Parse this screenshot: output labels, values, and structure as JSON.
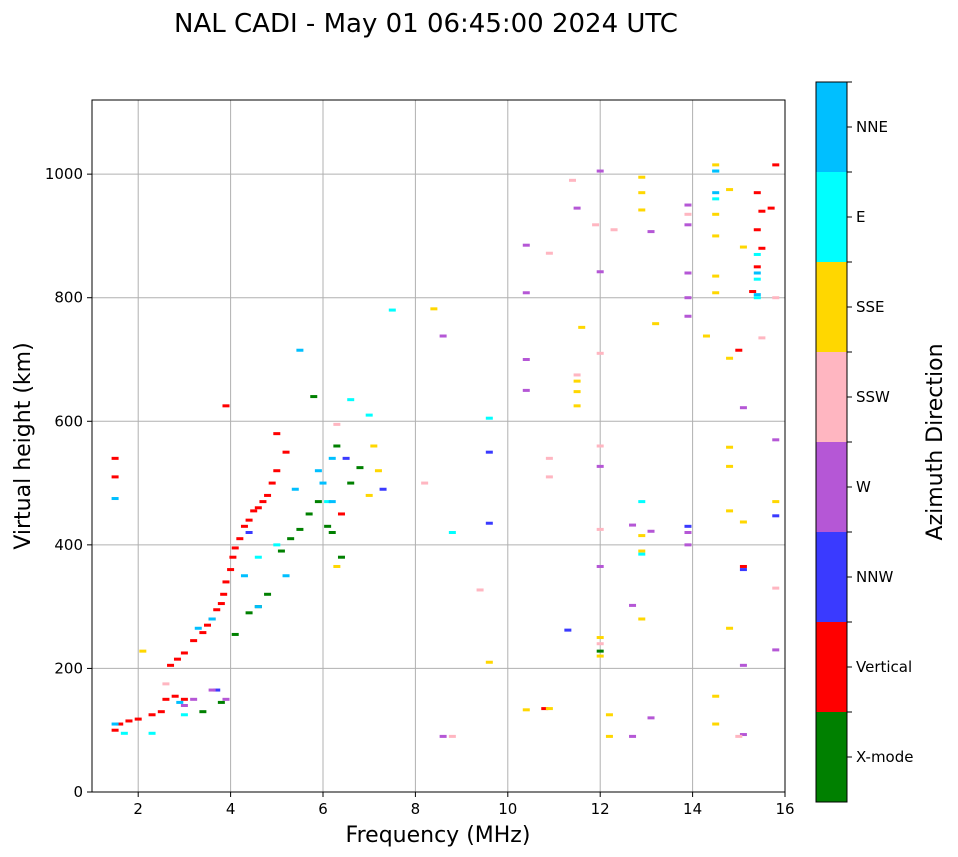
{
  "chart_data": {
    "type": "scatter",
    "title": "NAL CADI - May 01 06:45:00 2024 UTC",
    "xlabel": "Frequency (MHz)",
    "ylabel": "Virtual height (km)",
    "xlim": [
      1,
      16
    ],
    "ylim": [
      0,
      1120
    ],
    "xticks": [
      2,
      4,
      6,
      8,
      10,
      12,
      14,
      16
    ],
    "yticks": [
      0,
      200,
      400,
      600,
      800,
      1000
    ],
    "grid": true,
    "colorbar": {
      "label": "Azimuth Direction",
      "categories": [
        {
          "name": "X-mode",
          "color": "#008000"
        },
        {
          "name": "Vertical",
          "color": "#ff0000"
        },
        {
          "name": "NNW",
          "color": "#3a3aff"
        },
        {
          "name": "W",
          "color": "#b557d6"
        },
        {
          "name": "SSW",
          "color": "#ffb6c1"
        },
        {
          "name": "SSE",
          "color": "#ffd700"
        },
        {
          "name": "E",
          "color": "#00ffff"
        },
        {
          "name": "NNE",
          "color": "#00bfff"
        }
      ]
    },
    "series": [
      {
        "name": "Vertical",
        "points": [
          [
            1.5,
            100
          ],
          [
            1.6,
            110
          ],
          [
            1.8,
            115
          ],
          [
            2.0,
            118
          ],
          [
            2.3,
            125
          ],
          [
            2.5,
            130
          ],
          [
            2.6,
            150
          ],
          [
            2.8,
            155
          ],
          [
            3.0,
            150
          ],
          [
            2.7,
            205
          ],
          [
            2.85,
            215
          ],
          [
            3.0,
            225
          ],
          [
            3.2,
            245
          ],
          [
            3.4,
            258
          ],
          [
            3.5,
            270
          ],
          [
            3.6,
            280
          ],
          [
            3.7,
            295
          ],
          [
            3.8,
            305
          ],
          [
            3.85,
            320
          ],
          [
            3.9,
            340
          ],
          [
            4.0,
            360
          ],
          [
            4.05,
            380
          ],
          [
            4.1,
            395
          ],
          [
            4.2,
            410
          ],
          [
            4.3,
            430
          ],
          [
            4.4,
            440
          ],
          [
            4.5,
            455
          ],
          [
            4.6,
            460
          ],
          [
            4.7,
            470
          ],
          [
            4.8,
            480
          ],
          [
            4.9,
            500
          ],
          [
            5.0,
            520
          ],
          [
            5.2,
            550
          ],
          [
            5.0,
            580
          ],
          [
            1.5,
            540
          ],
          [
            1.5,
            510
          ],
          [
            3.9,
            625
          ],
          [
            6.4,
            450
          ],
          [
            10.8,
            135
          ],
          [
            15.1,
            365
          ],
          [
            15.0,
            715
          ],
          [
            15.3,
            810
          ],
          [
            15.4,
            850
          ],
          [
            15.5,
            880
          ],
          [
            15.4,
            910
          ],
          [
            15.5,
            940
          ],
          [
            15.4,
            970
          ],
          [
            15.7,
            945
          ],
          [
            15.8,
            1015
          ]
        ]
      },
      {
        "name": "X-mode",
        "points": [
          [
            3.4,
            130
          ],
          [
            3.8,
            145
          ],
          [
            4.1,
            255
          ],
          [
            4.4,
            290
          ],
          [
            4.6,
            300
          ],
          [
            4.8,
            320
          ],
          [
            5.1,
            390
          ],
          [
            5.3,
            410
          ],
          [
            5.5,
            425
          ],
          [
            5.7,
            450
          ],
          [
            5.9,
            470
          ],
          [
            6.1,
            430
          ],
          [
            6.2,
            420
          ],
          [
            6.4,
            380
          ],
          [
            6.3,
            560
          ],
          [
            6.6,
            500
          ],
          [
            6.8,
            525
          ],
          [
            5.8,
            640
          ],
          [
            12.0,
            228
          ]
        ]
      },
      {
        "name": "NNW",
        "points": [
          [
            3.7,
            165
          ],
          [
            4.4,
            420
          ],
          [
            6.5,
            540
          ],
          [
            7.3,
            490
          ],
          [
            9.6,
            435
          ],
          [
            9.6,
            550
          ],
          [
            11.3,
            262
          ],
          [
            13.9,
            430
          ],
          [
            15.1,
            360
          ],
          [
            15.8,
            447
          ]
        ]
      },
      {
        "name": "W",
        "points": [
          [
            3.0,
            140
          ],
          [
            3.2,
            150
          ],
          [
            3.6,
            165
          ],
          [
            3.9,
            150
          ],
          [
            8.6,
            90
          ],
          [
            10.4,
            700
          ],
          [
            10.4,
            650
          ],
          [
            10.4,
            885
          ],
          [
            10.4,
            808
          ],
          [
            11.5,
            945
          ],
          [
            12.0,
            1005
          ],
          [
            12.0,
            842
          ],
          [
            12.0,
            527
          ],
          [
            12.0,
            365
          ],
          [
            12.7,
            432
          ],
          [
            12.7,
            302
          ],
          [
            12.7,
            90
          ],
          [
            13.1,
            907
          ],
          [
            13.1,
            422
          ],
          [
            13.1,
            120
          ],
          [
            13.9,
            950
          ],
          [
            13.9,
            918
          ],
          [
            13.9,
            840
          ],
          [
            13.9,
            800
          ],
          [
            13.9,
            770
          ],
          [
            13.9,
            420
          ],
          [
            13.9,
            400
          ],
          [
            15.1,
            622
          ],
          [
            15.1,
            205
          ],
          [
            15.1,
            93
          ],
          [
            15.8,
            570
          ],
          [
            15.8,
            230
          ],
          [
            8.6,
            738
          ]
        ]
      },
      {
        "name": "SSW",
        "points": [
          [
            2.6,
            175
          ],
          [
            6.3,
            595
          ],
          [
            8.2,
            500
          ],
          [
            9.4,
            327
          ],
          [
            10.9,
            872
          ],
          [
            10.9,
            540
          ],
          [
            10.9,
            510
          ],
          [
            11.4,
            990
          ],
          [
            11.5,
            675
          ],
          [
            11.9,
            918
          ],
          [
            12.0,
            710
          ],
          [
            12.0,
            560
          ],
          [
            12.0,
            425
          ],
          [
            12.0,
            240
          ],
          [
            12.3,
            910
          ],
          [
            13.9,
            935
          ],
          [
            15.0,
            90
          ],
          [
            15.5,
            735
          ],
          [
            15.8,
            800
          ],
          [
            15.8,
            330
          ],
          [
            8.8,
            90
          ]
        ]
      },
      {
        "name": "SSE",
        "points": [
          [
            2.1,
            228
          ],
          [
            6.3,
            365
          ],
          [
            7.0,
            480
          ],
          [
            7.2,
            520
          ],
          [
            7.1,
            560
          ],
          [
            8.4,
            782
          ],
          [
            9.6,
            210
          ],
          [
            10.4,
            133
          ],
          [
            10.9,
            135
          ],
          [
            11.6,
            752
          ],
          [
            11.5,
            665
          ],
          [
            11.5,
            648
          ],
          [
            11.5,
            625
          ],
          [
            12.0,
            250
          ],
          [
            12.0,
            220
          ],
          [
            12.2,
            125
          ],
          [
            12.2,
            90
          ],
          [
            12.9,
            995
          ],
          [
            12.9,
            970
          ],
          [
            12.9,
            942
          ],
          [
            12.9,
            415
          ],
          [
            12.9,
            390
          ],
          [
            12.9,
            280
          ],
          [
            13.2,
            758
          ],
          [
            14.3,
            738
          ],
          [
            14.5,
            1015
          ],
          [
            14.5,
            935
          ],
          [
            14.5,
            900
          ],
          [
            14.5,
            835
          ],
          [
            14.5,
            808
          ],
          [
            14.5,
            155
          ],
          [
            14.5,
            110
          ],
          [
            14.8,
            975
          ],
          [
            14.8,
            702
          ],
          [
            14.8,
            558
          ],
          [
            14.8,
            527
          ],
          [
            14.8,
            455
          ],
          [
            14.8,
            265
          ],
          [
            15.1,
            882
          ],
          [
            15.1,
            437
          ],
          [
            15.8,
            470
          ]
        ]
      },
      {
        "name": "E",
        "points": [
          [
            1.7,
            95
          ],
          [
            2.3,
            95
          ],
          [
            3.0,
            125
          ],
          [
            4.6,
            380
          ],
          [
            5.0,
            400
          ],
          [
            6.1,
            470
          ],
          [
            6.6,
            635
          ],
          [
            7.0,
            610
          ],
          [
            7.5,
            780
          ],
          [
            8.8,
            420
          ],
          [
            9.6,
            605
          ],
          [
            12.9,
            470
          ],
          [
            12.9,
            385
          ],
          [
            14.5,
            1005
          ],
          [
            14.5,
            960
          ],
          [
            15.4,
            800
          ],
          [
            15.4,
            830
          ],
          [
            15.4,
            870
          ]
        ]
      },
      {
        "name": "NNE",
        "points": [
          [
            1.5,
            110
          ],
          [
            1.5,
            475
          ],
          [
            2.9,
            145
          ],
          [
            3.3,
            265
          ],
          [
            3.6,
            280
          ],
          [
            4.3,
            350
          ],
          [
            4.6,
            300
          ],
          [
            5.2,
            350
          ],
          [
            5.4,
            490
          ],
          [
            5.9,
            520
          ],
          [
            6.0,
            500
          ],
          [
            6.2,
            470
          ],
          [
            5.5,
            715
          ],
          [
            6.2,
            540
          ],
          [
            14.5,
            1005
          ],
          [
            14.5,
            970
          ],
          [
            15.4,
            805
          ],
          [
            15.4,
            840
          ]
        ]
      }
    ]
  }
}
